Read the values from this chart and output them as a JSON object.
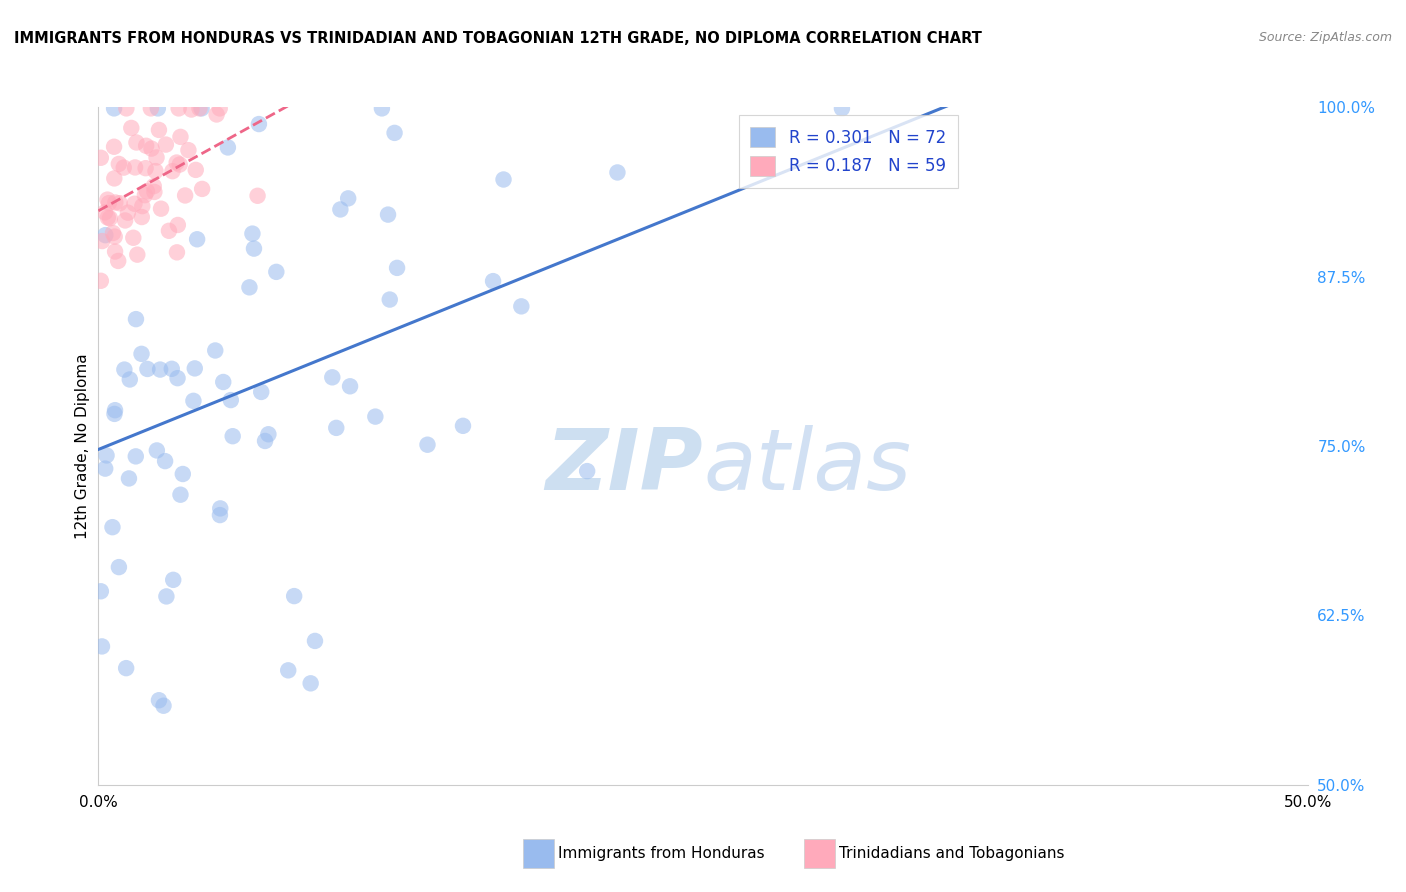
{
  "title": "IMMIGRANTS FROM HONDURAS VS TRINIDADIAN AND TOBAGONIAN 12TH GRADE, NO DIPLOMA CORRELATION CHART",
  "source": "Source: ZipAtlas.com",
  "ylabel": "12th Grade, No Diploma",
  "xlabel_label1": "Immigrants from Honduras",
  "xlabel_label2": "Trinidadians and Tobagonians",
  "xmin": 0.0,
  "xmax": 0.5,
  "ymin": 0.5,
  "ymax": 1.0,
  "xticks": [
    0.0,
    0.1,
    0.2,
    0.3,
    0.4,
    0.5
  ],
  "xticklabels": [
    "0.0%",
    "",
    "",
    "",
    "",
    "50.0%"
  ],
  "yticks": [
    0.5,
    0.625,
    0.75,
    0.875,
    1.0
  ],
  "yticklabels": [
    "50.0%",
    "62.5%",
    "75.0%",
    "87.5%",
    "100.0%"
  ],
  "R_blue": 0.301,
  "N_blue": 72,
  "R_pink": 0.187,
  "N_pink": 59,
  "blue_color": "#99BBEE",
  "pink_color": "#FFAABB",
  "blue_line_color": "#4477CC",
  "pink_line_color": "#EE6688",
  "watermark_text": "ZIP",
  "watermark_text2": "atlas",
  "blue_seed": 10,
  "pink_seed": 20
}
